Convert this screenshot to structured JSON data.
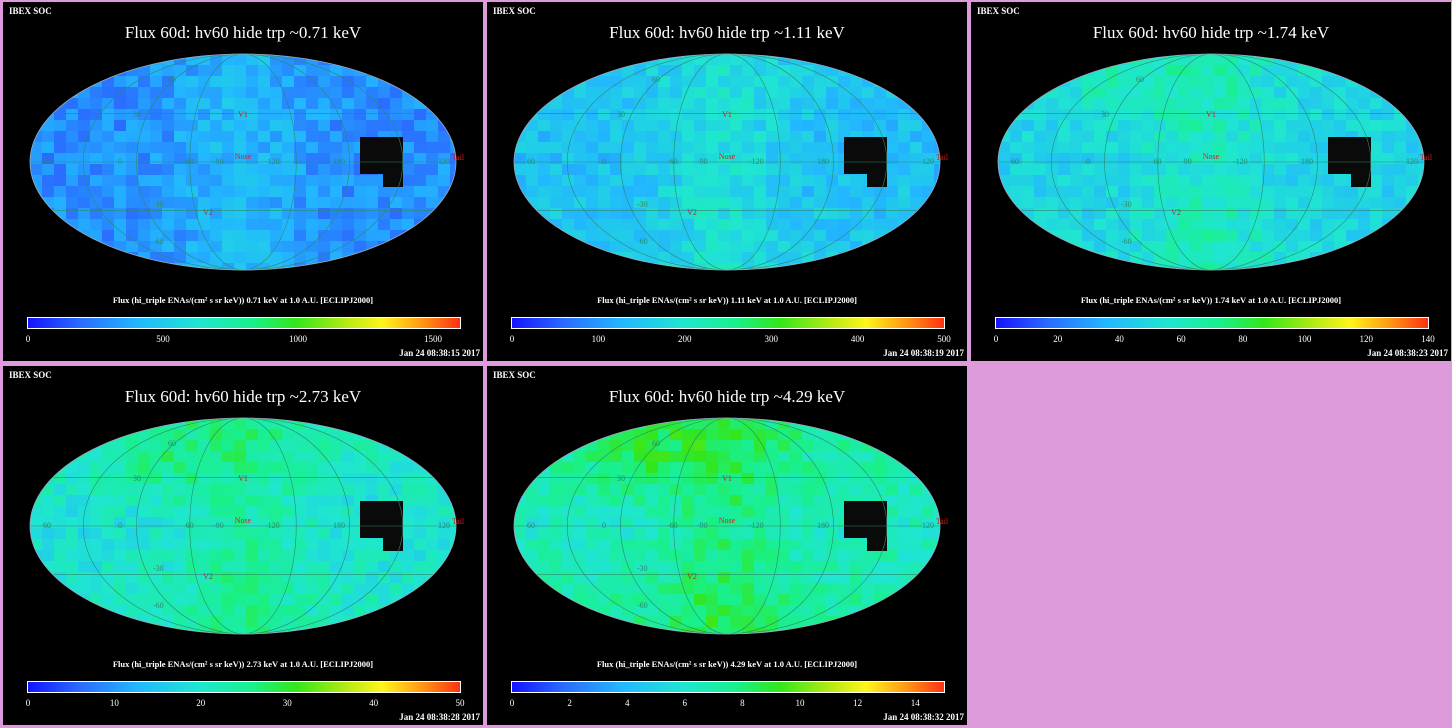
{
  "header": "IBEX SOC",
  "panels": [
    {
      "title": "Flux   60d: hv60 hide trp ~0.71 keV",
      "caption": "Flux (hi_triple ENAs/(cm² s sr keV))  0.71 keV at 1.0 A.U. [ECLIPJ2000]",
      "timestamp": "Jan 24 08:38:15 2017",
      "colorbar": {
        "min": 0,
        "max": 1600,
        "ticks": [
          "0",
          "500",
          "1000",
          "1500"
        ]
      },
      "fill_level": 0.18
    },
    {
      "title": "Flux   60d: hv60 hide trp ~1.11 keV",
      "caption": "Flux (hi_triple ENAs/(cm² s sr keV))  1.11 keV at 1.0 A.U. [ECLIPJ2000]",
      "timestamp": "Jan 24 08:38:19 2017",
      "colorbar": {
        "min": 0,
        "max": 500,
        "ticks": [
          "0",
          "100",
          "200",
          "300",
          "400",
          "500"
        ]
      },
      "fill_level": 0.28
    },
    {
      "title": "Flux   60d: hv60 hide trp ~1.74 keV",
      "caption": "Flux (hi_triple ENAs/(cm² s sr keV))  1.74 keV at 1.0 A.U. [ECLIPJ2000]",
      "timestamp": "Jan 24 08:38:23 2017",
      "colorbar": {
        "min": 0,
        "max": 140,
        "ticks": [
          "0",
          "20",
          "40",
          "60",
          "80",
          "100",
          "120",
          "140"
        ]
      },
      "fill_level": 0.33
    },
    {
      "title": "Flux   60d: hv60 hide trp ~2.73 keV",
      "caption": "Flux (hi_triple ENAs/(cm² s sr keV))  2.73 keV at 1.0 A.U. [ECLIPJ2000]",
      "timestamp": "Jan 24 08:38:28 2017",
      "colorbar": {
        "min": 0,
        "max": 50,
        "ticks": [
          "0",
          "10",
          "20",
          "30",
          "40",
          "50"
        ]
      },
      "fill_level": 0.38
    },
    {
      "title": "Flux   60d: hv60 hide trp ~4.29 keV",
      "caption": "Flux (hi_triple ENAs/(cm² s sr keV))  4.29 keV at 1.0 A.U. [ECLIPJ2000]",
      "timestamp": "Jan 24 08:38:32 2017",
      "colorbar": {
        "min": 0,
        "max": 15,
        "ticks": [
          "0",
          "2",
          "4",
          "6",
          "8",
          "10",
          "12",
          "14"
        ]
      },
      "fill_level": 0.42
    }
  ],
  "map_labels": {
    "nose": "Nose",
    "tail": "Tail",
    "v1": "V1",
    "v2": "V2",
    "lon": [
      "60",
      "0",
      "-60",
      "-90",
      "-120",
      "180",
      "120"
    ],
    "lat": [
      "60",
      "30",
      "-30",
      "-60"
    ]
  },
  "colors": {
    "background": "#dd9bdc",
    "panel": "#000000",
    "grid": "#2a8a6a",
    "marker": "#cc2222"
  }
}
